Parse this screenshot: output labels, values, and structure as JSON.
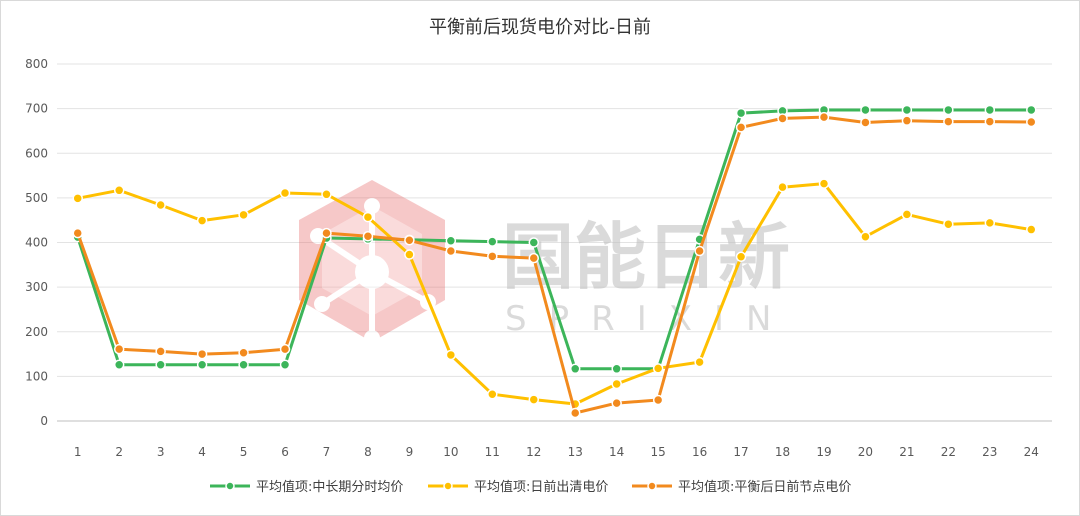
{
  "chart_data": {
    "type": "line",
    "title": "平衡前后现货电价对比-日前",
    "xlabel": "",
    "ylabel": "",
    "ylim": [
      0,
      800
    ],
    "yticks": [
      0,
      100,
      200,
      300,
      400,
      500,
      600,
      700,
      800
    ],
    "grid": true,
    "legend_position": "bottom",
    "categories": [
      "1",
      "2",
      "3",
      "4",
      "5",
      "6",
      "7",
      "8",
      "9",
      "10",
      "11",
      "12",
      "13",
      "14",
      "15",
      "16",
      "17",
      "18",
      "19",
      "20",
      "21",
      "22",
      "23",
      "24"
    ],
    "series": [
      {
        "name": "平均值项:中长期分时均价",
        "color": "#3cb55a",
        "values": [
          412,
          126,
          126,
          126,
          126,
          126,
          410,
          408,
          406,
          404,
          402,
          400,
          117,
          117,
          117,
          407,
          690,
          695,
          697,
          697,
          697,
          697,
          697,
          697
        ]
      },
      {
        "name": "平均值项:日前出清电价",
        "color": "#ffc000",
        "values": [
          499,
          517,
          484,
          449,
          462,
          511,
          508,
          457,
          373,
          148,
          60,
          48,
          38,
          83,
          118,
          132,
          368,
          524,
          532,
          413,
          463,
          441,
          444,
          429
        ]
      },
      {
        "name": "平均值项:平衡后日前节点电价",
        "color": "#f28a1e",
        "values": [
          421,
          161,
          156,
          150,
          153,
          161,
          421,
          414,
          405,
          381,
          369,
          365,
          18,
          40,
          47,
          381,
          658,
          678,
          681,
          669,
          673,
          671,
          671,
          670
        ]
      }
    ]
  },
  "watermark": {
    "text_cn": "国能日新",
    "text_en": "SPRIXIN",
    "logo_color": "#e87070"
  }
}
